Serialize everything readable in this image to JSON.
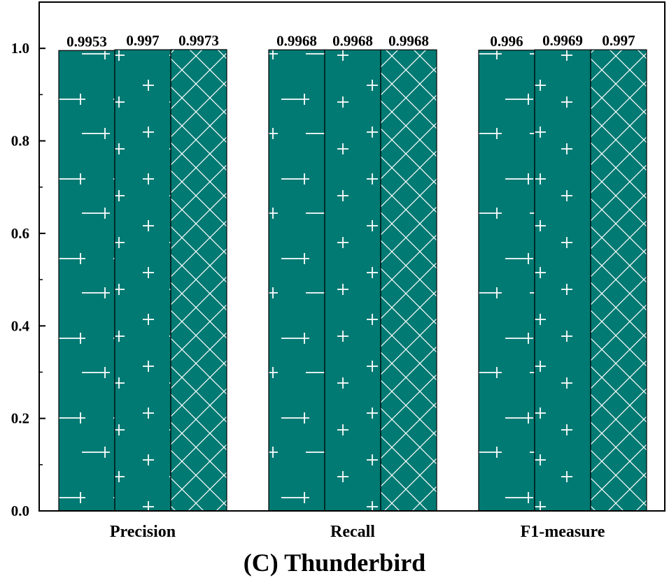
{
  "caption": "(C) Thunderbird",
  "chart_data": {
    "type": "bar",
    "categories": [
      "Precision",
      "Recall",
      "F1-measure"
    ],
    "series": [
      {
        "values": [
          0.9953,
          0.9968,
          0.996
        ],
        "labels": [
          "0.9953",
          "0.9968",
          "0.996"
        ],
        "pattern": "horizontal-plus"
      },
      {
        "values": [
          0.997,
          0.9968,
          0.9969
        ],
        "labels": [
          "0.997",
          "0.9968",
          "0.9969"
        ],
        "pattern": "plus"
      },
      {
        "values": [
          0.9973,
          0.9968,
          0.997
        ],
        "labels": [
          "0.9973",
          "0.9968",
          "0.997"
        ],
        "pattern": "crosshatch"
      }
    ],
    "ylim": [
      0,
      1.1
    ],
    "yticks": [
      "0.0",
      "0.2",
      "0.4",
      "0.6",
      "0.8",
      "1.0"
    ],
    "bar_color": "#007a73",
    "pattern_color": "#ffffff",
    "grid": false,
    "legend": "none"
  }
}
